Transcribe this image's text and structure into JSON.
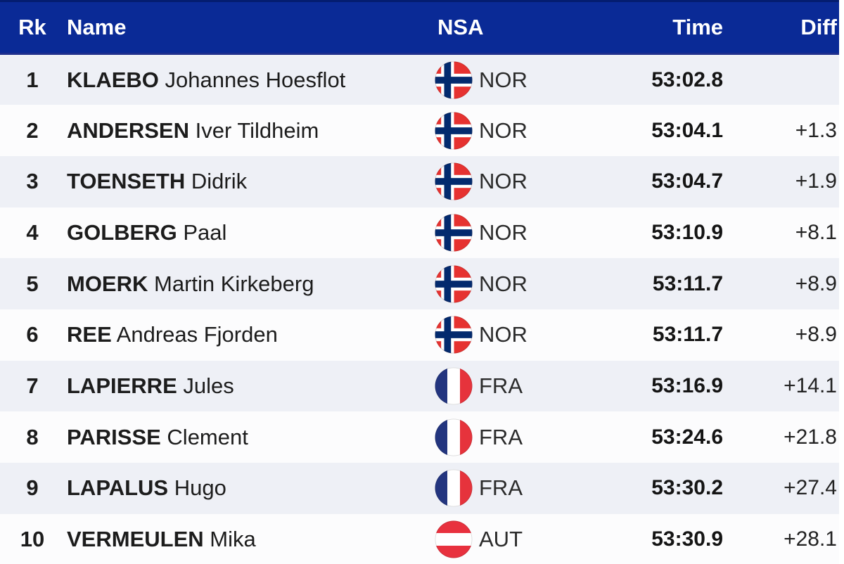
{
  "colors": {
    "header_bg": "#0a2a96",
    "header_border_top": "#041d70",
    "header_border_bottom": "#1e2f8d",
    "header_text": "#ffffff",
    "row_odd_bg": "#eef0f6",
    "row_even_bg": "#fcfcfd",
    "text_primary": "#1c1c1c",
    "nsa_text": "#2b2b2b"
  },
  "table": {
    "columns": [
      {
        "key": "rank",
        "label": "Rk"
      },
      {
        "key": "name",
        "label": "Name"
      },
      {
        "key": "nsa",
        "label": "NSA"
      },
      {
        "key": "time",
        "label": "Time"
      },
      {
        "key": "diff",
        "label": "Diff"
      }
    ],
    "rows": [
      {
        "rank": "1",
        "surname": "KLAEBO",
        "given_name": "Johannes Hoesflot",
        "nsa": "NOR",
        "time": "53:02.8",
        "diff": ""
      },
      {
        "rank": "2",
        "surname": "ANDERSEN",
        "given_name": "Iver Tildheim",
        "nsa": "NOR",
        "time": "53:04.1",
        "diff": "+1.3"
      },
      {
        "rank": "3",
        "surname": "TOENSETH",
        "given_name": "Didrik",
        "nsa": "NOR",
        "time": "53:04.7",
        "diff": "+1.9"
      },
      {
        "rank": "4",
        "surname": "GOLBERG",
        "given_name": "Paal",
        "nsa": "NOR",
        "time": "53:10.9",
        "diff": "+8.1"
      },
      {
        "rank": "5",
        "surname": "MOERK",
        "given_name": "Martin Kirkeberg",
        "nsa": "NOR",
        "time": "53:11.7",
        "diff": "+8.9"
      },
      {
        "rank": "6",
        "surname": "REE",
        "given_name": "Andreas Fjorden",
        "nsa": "NOR",
        "time": "53:11.7",
        "diff": "+8.9"
      },
      {
        "rank": "7",
        "surname": "LAPIERRE",
        "given_name": "Jules",
        "nsa": "FRA",
        "time": "53:16.9",
        "diff": "+14.1"
      },
      {
        "rank": "8",
        "surname": "PARISSE",
        "given_name": "Clement",
        "nsa": "FRA",
        "time": "53:24.6",
        "diff": "+21.8"
      },
      {
        "rank": "9",
        "surname": "LAPALUS",
        "given_name": "Hugo",
        "nsa": "FRA",
        "time": "53:30.2",
        "diff": "+27.4"
      },
      {
        "rank": "10",
        "surname": "VERMEULEN",
        "given_name": "Mika",
        "nsa": "AUT",
        "time": "53:30.9",
        "diff": "+28.1"
      }
    ]
  },
  "flags": {
    "NOR": {
      "icon": "norway-flag-icon",
      "type": "nordic_cross",
      "bg": "#e63230",
      "cross": "#032a6e",
      "cross_outline": "#ffffff"
    },
    "FRA": {
      "icon": "france-flag-icon",
      "type": "vertical_tricolor",
      "stripes": [
        "#23357f",
        "#ffffff",
        "#e6333c"
      ]
    },
    "AUT": {
      "icon": "austria-flag-icon",
      "type": "horizontal_tricolor",
      "stripes": [
        "#e8313e",
        "#ffffff",
        "#e8313e"
      ]
    }
  }
}
